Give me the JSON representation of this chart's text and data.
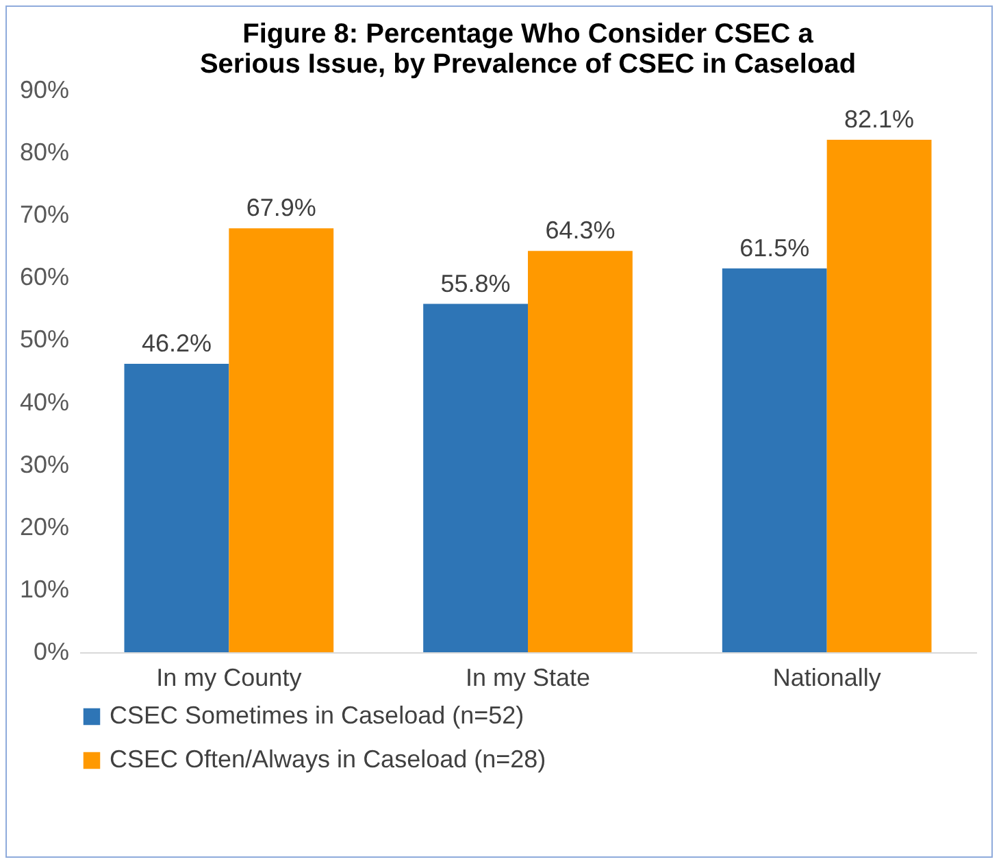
{
  "chart_data": {
    "type": "bar",
    "title": "Figure 8: Percentage Who Consider CSEC a Serious Issue, by Prevalence of CSEC in Caseload",
    "categories": [
      "In my County",
      "In my State",
      "Nationally"
    ],
    "series": [
      {
        "name": "CSEC Sometimes in Caseload (n=52)",
        "color": "#2e75b6",
        "values": [
          46.2,
          55.8,
          61.5
        ],
        "value_labels": [
          "46.2%",
          "55.8%",
          "61.5%"
        ]
      },
      {
        "name": "CSEC Often/Always in Caseload (n=28)",
        "color": "#ff9900",
        "values": [
          67.9,
          64.3,
          82.1
        ],
        "value_labels": [
          "67.9%",
          "64.3%",
          "82.1%"
        ]
      }
    ],
    "ylim": [
      0,
      90
    ],
    "yticks": [
      {
        "value": 0,
        "label": "0%"
      },
      {
        "value": 10,
        "label": "10%"
      },
      {
        "value": 20,
        "label": "20%"
      },
      {
        "value": 30,
        "label": "30%"
      },
      {
        "value": 40,
        "label": "40%"
      },
      {
        "value": 50,
        "label": "50%"
      },
      {
        "value": 60,
        "label": "60%"
      },
      {
        "value": 70,
        "label": "70%"
      },
      {
        "value": 80,
        "label": "80%"
      },
      {
        "value": 90,
        "label": "90%"
      }
    ],
    "grid": false,
    "legend": "bottom"
  }
}
